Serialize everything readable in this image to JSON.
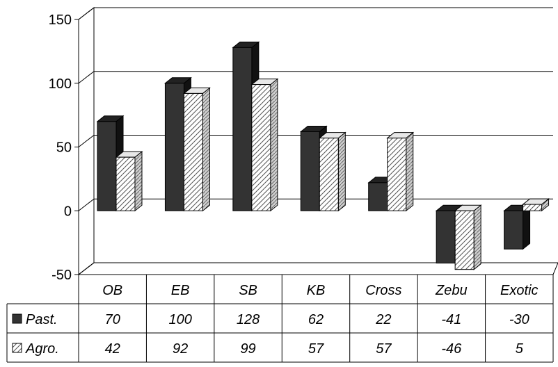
{
  "chart_data": {
    "type": "bar",
    "categories": [
      "OB",
      "EB",
      "SB",
      "KB",
      "Cross",
      "Zebu",
      "Exotic"
    ],
    "series": [
      {
        "name": "Past.",
        "values": [
          70,
          100,
          128,
          62,
          22,
          -41,
          -30
        ]
      },
      {
        "name": "Agro.",
        "values": [
          42,
          92,
          99,
          57,
          57,
          -46,
          5
        ]
      }
    ],
    "data_table": {
      "rows": [
        [
          "70",
          "100",
          "128",
          "62",
          "22",
          "-41",
          "-30"
        ],
        [
          "42",
          "92",
          "99",
          "57",
          "57",
          "-46",
          "5"
        ]
      ]
    },
    "ylim": [
      -50,
      150
    ],
    "yticks": [
      "150",
      "100",
      "50",
      "0",
      "-50"
    ],
    "ytick_values": [
      150,
      100,
      50,
      0,
      -50
    ],
    "grid": true,
    "three_d": true,
    "legend": "table-left",
    "colors": {
      "past": "#333333",
      "agro_fill": "#ffffff",
      "agro_hatch": "#555555",
      "gridline": "#000000"
    }
  }
}
